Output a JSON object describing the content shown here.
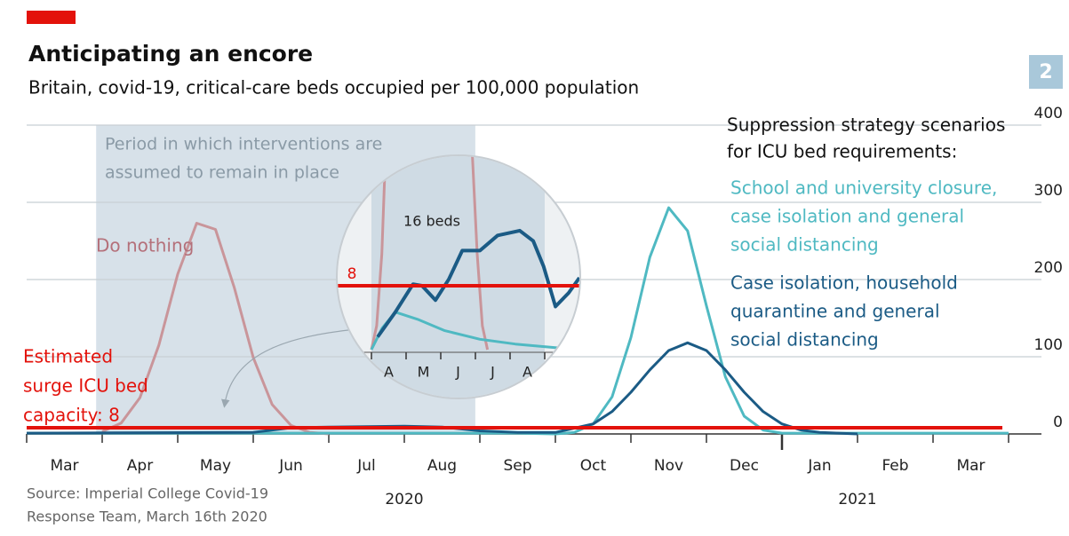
{
  "chart_data": {
    "type": "line",
    "title": "Anticipating an encore",
    "subtitle": "Britain, covid-19, critical-care beds occupied per 100,000 population",
    "badge": "2",
    "period_label": [
      "Period in which interventions are",
      "assumed to remain in place"
    ],
    "legend_title": [
      "Suppression strategy scenarios",
      "for ICU bed requirements:"
    ],
    "source": [
      "Source: Imperial College Covid-19",
      "Response Team, March 16th 2020"
    ],
    "categories": [
      "Mar",
      "Apr",
      "May",
      "Jun",
      "Jul",
      "Aug",
      "Sep",
      "Oct",
      "Nov",
      "Dec",
      "Jan",
      "Feb",
      "Mar"
    ],
    "years": [
      {
        "label": "2020",
        "at": 5
      },
      {
        "label": "2021",
        "at": 11
      }
    ],
    "xlim": [
      0,
      13
    ],
    "xticks": [
      0,
      1,
      2,
      3,
      4,
      5,
      6,
      7,
      8,
      9,
      10,
      11,
      12,
      13
    ],
    "ylim": [
      0,
      400
    ],
    "yticks": [
      0,
      100,
      200,
      300,
      400
    ],
    "grid": true,
    "shade": [
      0.92,
      5.94
    ],
    "capacity": {
      "value": 8,
      "color": "#e3120b",
      "label": [
        "Estimated",
        "surge ICU bed",
        "capacity: 8"
      ]
    },
    "series": [
      {
        "name": [
          "Do nothing"
        ],
        "color": "#c9959a",
        "x": [
          1.0,
          1.25,
          1.5,
          1.75,
          2.0,
          2.25,
          2.5,
          2.75,
          3.0,
          3.25,
          3.5,
          3.75,
          4.0
        ],
        "values": [
          3,
          14,
          47,
          115,
          207,
          273,
          265,
          189,
          99,
          38,
          11,
          2,
          0
        ]
      },
      {
        "name": [
          "School and university closure,",
          "case isolation and general",
          "social distancing"
        ],
        "color": "#4fb9c2",
        "x": [
          0,
          6.5,
          7.0,
          7.25,
          7.5,
          7.75,
          8.0,
          8.25,
          8.5,
          8.75,
          9.0,
          9.25,
          9.5,
          9.75,
          10.0,
          13.0
        ],
        "values": [
          1,
          1,
          0,
          2,
          13,
          48,
          125,
          229,
          293,
          263,
          166,
          74,
          23,
          5,
          1,
          1
        ]
      },
      {
        "name": [
          "Case isolation, household",
          "quarantine and general",
          "social distancing"
        ],
        "color": "#1b5b85",
        "x": [
          0,
          3.0,
          3.5,
          4.0,
          5.0,
          5.5,
          6.0,
          6.5,
          7.0,
          7.5,
          7.75,
          8.0,
          8.25,
          8.5,
          8.75,
          9.0,
          9.25,
          9.5,
          9.75,
          10.0,
          10.25,
          10.5,
          11.0
        ],
        "values": [
          1,
          2,
          8,
          9,
          10,
          9,
          4,
          2,
          2,
          13,
          29,
          54,
          83,
          108,
          118,
          108,
          83,
          54,
          29,
          13,
          5,
          2,
          0
        ]
      }
    ],
    "inset": {
      "label": "16 beds",
      "capacity": 8,
      "ylim": [
        0,
        16
      ],
      "categories": [
        "A",
        "M",
        "J",
        "J",
        "A"
      ],
      "xticks": [
        0,
        1,
        2,
        3,
        4,
        5
      ],
      "shade": [
        0,
        5
      ],
      "series": [
        {
          "color": "#c9959a",
          "x": [
            0,
            0.15,
            0.3,
            0.45,
            1.5,
            2.85,
            3.05,
            3.2,
            3.35
          ],
          "values": [
            0,
            3,
            12,
            30,
            null,
            30,
            12,
            3,
            0
          ]
        },
        {
          "color": "#4fb9c2",
          "x": [
            0,
            0.31,
            0.69,
            1.33,
            2.1,
            3.13,
            4.15,
            5.69
          ],
          "values": [
            0,
            2.7,
            4.7,
            3.8,
            2.4,
            1.3,
            0.7,
            0.1
          ]
        },
        {
          "color": "#1b5b85",
          "x": [
            0.18,
            0.69,
            1.2,
            1.46,
            1.85,
            2.23,
            2.62,
            3.13,
            3.64,
            4.28,
            4.67,
            4.97,
            5.31,
            5.69,
            6.0
          ],
          "values": [
            1.6,
            4.7,
            8.2,
            8,
            6.2,
            8.8,
            12.4,
            12.4,
            14.3,
            14.9,
            13.6,
            10.4,
            5.4,
            7.1,
            9
          ]
        }
      ]
    }
  }
}
